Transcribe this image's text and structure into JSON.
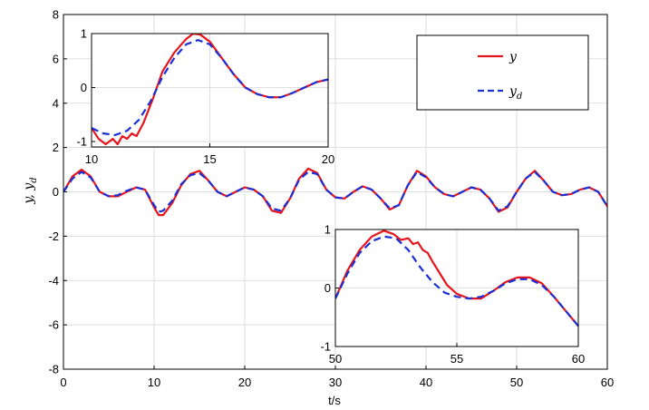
{
  "chart_data": {
    "type": "line",
    "title": "",
    "xlabel": "t/s",
    "ylabel": "y, y_d",
    "xlim": [
      0,
      60
    ],
    "ylim": [
      -8,
      8
    ],
    "xticks": [
      "0",
      "10",
      "20",
      "30",
      "40",
      "50",
      "60"
    ],
    "yticks": [
      "-8",
      "-6",
      "-4",
      "-2",
      "0",
      "2",
      "4",
      "6",
      "8"
    ],
    "grid": true,
    "legend": {
      "placement": "top-right",
      "entries": [
        {
          "label": "y",
          "sub": "",
          "color": "#e8141b",
          "style": "solid"
        },
        {
          "label": "y",
          "sub": "d",
          "color": "#1a2fd6",
          "style": "dashed"
        }
      ]
    },
    "series": [
      {
        "name": "y",
        "color": "#e8141b",
        "x": [
          0,
          1,
          2,
          3,
          4,
          5,
          6,
          7,
          8,
          9,
          10,
          10.5,
          11,
          12,
          13,
          14,
          15,
          16,
          17,
          18,
          19,
          20,
          21,
          22,
          23,
          24,
          25,
          26,
          27,
          28,
          29,
          30,
          31,
          32,
          33,
          34,
          35,
          36,
          37,
          38,
          39,
          40,
          41,
          42,
          43,
          44,
          45,
          46,
          47,
          48,
          49,
          50,
          51,
          52,
          53,
          54,
          55,
          56,
          57,
          58,
          59,
          60
        ],
        "y": [
          0.0,
          0.7,
          1.0,
          0.7,
          0.0,
          -0.2,
          -0.2,
          0.0,
          0.2,
          0.1,
          -0.7,
          -1.05,
          -1.05,
          -0.5,
          0.3,
          0.8,
          0.95,
          0.5,
          0.0,
          -0.2,
          0.0,
          0.2,
          0.1,
          -0.2,
          -0.85,
          -0.95,
          -0.3,
          0.6,
          1.05,
          0.85,
          0.1,
          -0.25,
          -0.3,
          0.0,
          0.25,
          0.1,
          -0.3,
          -0.8,
          -0.6,
          0.3,
          0.95,
          0.7,
          0.2,
          -0.1,
          -0.2,
          0.0,
          0.2,
          0.1,
          -0.3,
          -0.9,
          -0.7,
          0.0,
          0.6,
          0.95,
          0.5,
          0.0,
          -0.15,
          -0.1,
          0.1,
          0.2,
          0.0,
          -0.65
        ]
      },
      {
        "name": "y_d",
        "color": "#1a2fd6",
        "x": [
          0,
          1,
          2,
          3,
          4,
          5,
          6,
          7,
          8,
          9,
          10,
          10.5,
          11,
          12,
          13,
          14,
          15,
          16,
          17,
          18,
          19,
          20,
          21,
          22,
          23,
          24,
          25,
          26,
          27,
          28,
          29,
          30,
          31,
          32,
          33,
          34,
          35,
          36,
          37,
          38,
          39,
          40,
          41,
          42,
          43,
          44,
          45,
          46,
          47,
          48,
          49,
          50,
          51,
          52,
          53,
          54,
          55,
          56,
          57,
          58,
          59,
          60
        ],
        "y": [
          0.0,
          0.6,
          0.9,
          0.65,
          0.0,
          -0.2,
          -0.15,
          0.05,
          0.2,
          0.1,
          -0.6,
          -0.9,
          -0.85,
          -0.4,
          0.35,
          0.75,
          0.85,
          0.5,
          0.0,
          -0.2,
          0.0,
          0.2,
          0.1,
          -0.2,
          -0.75,
          -0.85,
          -0.3,
          0.55,
          0.9,
          0.8,
          0.1,
          -0.25,
          -0.3,
          0.0,
          0.25,
          0.1,
          -0.3,
          -0.75,
          -0.6,
          0.3,
          0.9,
          0.65,
          0.2,
          -0.1,
          -0.2,
          0.0,
          0.2,
          0.1,
          -0.3,
          -0.85,
          -0.65,
          0.0,
          0.6,
          0.9,
          0.5,
          0.0,
          -0.15,
          -0.1,
          0.1,
          0.2,
          0.0,
          -0.65
        ]
      }
    ],
    "insets": [
      {
        "name": "inset-top-left",
        "xlim": [
          10,
          20
        ],
        "ylim": [
          -1.1,
          1
        ],
        "xticks": [
          "10",
          "15",
          "20"
        ],
        "yticks": [
          "-1",
          "0",
          "1"
        ],
        "series": [
          {
            "name": "y",
            "color": "#e8141b",
            "x": [
              10,
              10.3,
              10.6,
              10.9,
              11.1,
              11.3,
              11.5,
              11.7,
              11.9,
              12.2,
              12.6,
              13.0,
              13.5,
              14.0,
              14.3,
              14.6,
              15.0,
              15.5,
              16.0,
              16.5,
              17.0,
              17.5,
              18.0,
              18.5,
              19.0,
              19.5,
              20.0
            ],
            "y": [
              -0.75,
              -0.95,
              -1.05,
              -0.95,
              -1.05,
              -0.9,
              -0.95,
              -0.85,
              -0.9,
              -0.65,
              -0.2,
              0.3,
              0.65,
              0.9,
              1.0,
              0.98,
              0.85,
              0.55,
              0.25,
              0.0,
              -0.12,
              -0.18,
              -0.18,
              -0.1,
              0.0,
              0.1,
              0.15
            ]
          },
          {
            "name": "y_d",
            "color": "#1a2fd6",
            "x": [
              10,
              10.5,
              11.0,
              11.5,
              12.0,
              12.5,
              13.0,
              13.5,
              14.0,
              14.5,
              15.0,
              15.5,
              16.0,
              16.5,
              17.0,
              17.5,
              18.0,
              18.5,
              19.0,
              19.5,
              20.0
            ],
            "y": [
              -0.75,
              -0.85,
              -0.88,
              -0.8,
              -0.6,
              -0.25,
              0.2,
              0.55,
              0.8,
              0.88,
              0.8,
              0.55,
              0.25,
              0.0,
              -0.12,
              -0.18,
              -0.18,
              -0.1,
              0.0,
              0.1,
              0.15
            ]
          }
        ]
      },
      {
        "name": "inset-bottom-right",
        "xlim": [
          50,
          60
        ],
        "ylim": [
          -1,
          1
        ],
        "xticks": [
          "50",
          "55",
          "60"
        ],
        "yticks": [
          "-1",
          "0",
          "1"
        ],
        "series": [
          {
            "name": "y",
            "color": "#e8141b",
            "x": [
              50,
              50.5,
              51.0,
              51.5,
              52.0,
              52.4,
              52.7,
              53.0,
              53.2,
              53.4,
              53.6,
              53.8,
              54.0,
              54.3,
              54.6,
              55.0,
              55.5,
              56.0,
              56.5,
              57.0,
              57.5,
              58.0,
              58.5,
              59.0,
              59.5,
              60.0
            ],
            "y": [
              -0.18,
              0.3,
              0.65,
              0.88,
              0.98,
              0.92,
              0.82,
              0.85,
              0.75,
              0.78,
              0.65,
              0.6,
              0.45,
              0.25,
              0.05,
              -0.1,
              -0.18,
              -0.18,
              -0.05,
              0.1,
              0.18,
              0.18,
              0.08,
              -0.15,
              -0.4,
              -0.65
            ]
          },
          {
            "name": "y_d",
            "color": "#1a2fd6",
            "x": [
              50,
              50.5,
              51.0,
              51.5,
              52.0,
              52.5,
              53.0,
              53.5,
              54.0,
              54.5,
              55.0,
              55.5,
              56.0,
              56.5,
              57.0,
              57.5,
              58.0,
              58.5,
              59.0,
              59.5,
              60.0
            ],
            "y": [
              -0.18,
              0.25,
              0.6,
              0.8,
              0.88,
              0.85,
              0.65,
              0.35,
              0.1,
              -0.08,
              -0.15,
              -0.18,
              -0.15,
              -0.05,
              0.08,
              0.15,
              0.15,
              0.05,
              -0.15,
              -0.4,
              -0.65
            ]
          }
        ]
      }
    ]
  }
}
